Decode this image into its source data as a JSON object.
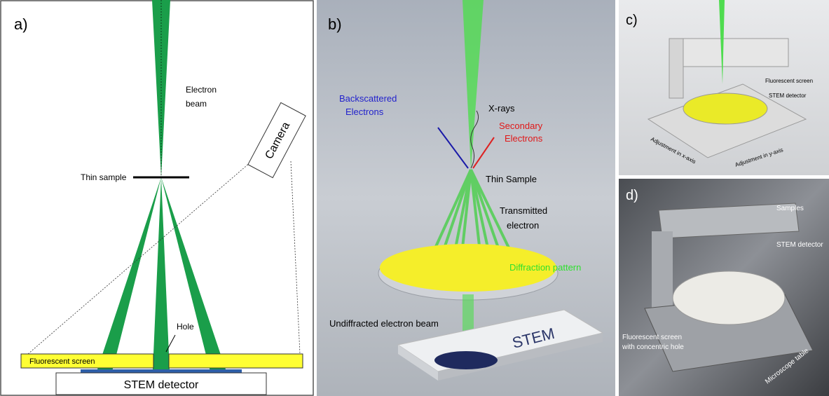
{
  "panel_a": {
    "tag": "a)",
    "electron_beam": [
      "Electron",
      "beam"
    ],
    "camera": "Camera",
    "thin_sample": "Thin sample",
    "hole": "Hole",
    "fluorescent_screen": "Fluorescent screen",
    "stem_detector": "STEM detector"
  },
  "panel_b": {
    "tag": "b)",
    "backscattered": [
      "Backscattered",
      "Electrons"
    ],
    "x_rays": "X-rays",
    "secondary": [
      "Secondary",
      "Electrons"
    ],
    "thin_sample": "Thin Sample",
    "transmitted": [
      "Transmitted",
      "electron"
    ],
    "diffraction": "Diffraction pattern",
    "undiffracted": "Undiffracted electron beam",
    "stem": "STEM"
  },
  "panel_c": {
    "tag": "c)",
    "fluorescent_screen": "Fluorescent screen",
    "stem_detector": "STEM detector",
    "adjust_x": "Adjustment in x-axis",
    "adjust_y": "Adjustment in y-axis"
  },
  "panel_d": {
    "tag": "d)",
    "samples": "Samples",
    "stem_detector": "STEM detector",
    "fluorescent_screen": [
      "Fluorescent screen",
      "with concentric hole"
    ],
    "microscope_table": "Microscope table"
  }
}
